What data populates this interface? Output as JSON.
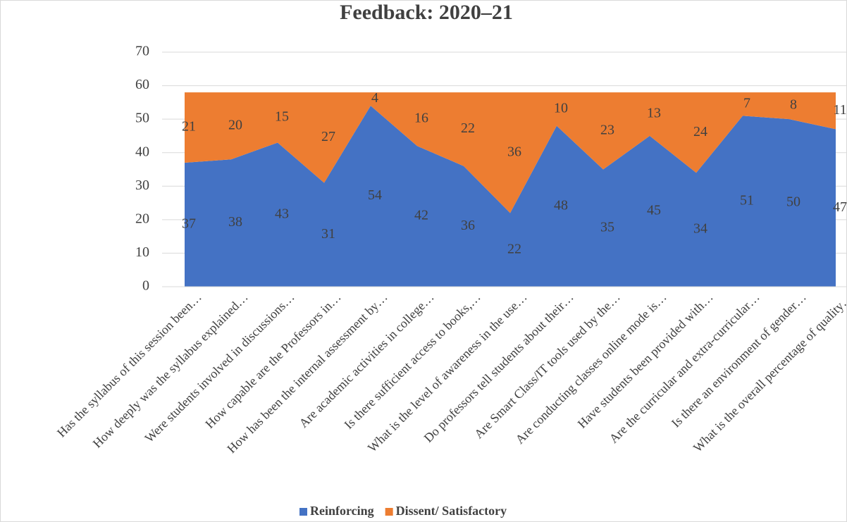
{
  "chart_data": {
    "type": "stacked_area",
    "title": "Feedback: 2020–21",
    "categories": [
      "Has the syllabus of this session been…",
      "How deeply was the syllabus explained…",
      "Were students involved in discussions…",
      "How capable are the Professors in…",
      "How has been the internal assessment by…",
      "Are academic activities in college…",
      "Is there sufficient access to books,…",
      "What is the level of awareness in the use…",
      "Do professors tell students about their…",
      "Are Smart Class/IT tools used by the…",
      "Are conducting classes online mode is…",
      "Have students been provided with…",
      "Are the curricular and extra-curricular…",
      "Is there an environment of gender…",
      "What is the overall percentage of quality…"
    ],
    "series": [
      {
        "name": "Reinforcing",
        "color": "#4472c4",
        "values": [
          37,
          38,
          43,
          31,
          54,
          42,
          36,
          22,
          48,
          35,
          45,
          34,
          51,
          50,
          47
        ]
      },
      {
        "name": "Dissent/ Satisfactory",
        "color": "#ed7d31",
        "values": [
          21,
          20,
          15,
          27,
          4,
          16,
          22,
          36,
          10,
          23,
          13,
          24,
          7,
          8,
          11
        ]
      }
    ],
    "ylim": [
      0,
      70
    ],
    "yticks": [
      0,
      10,
      20,
      30,
      40,
      50,
      60,
      70
    ],
    "grid": true,
    "legend": "bottom"
  }
}
